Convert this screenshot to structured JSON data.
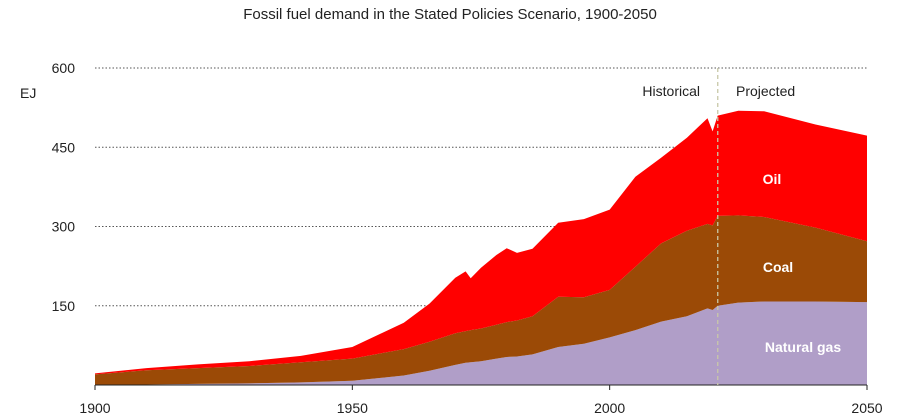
{
  "chart_data": {
    "type": "area",
    "stacked": true,
    "title": "Fossil fuel demand in the Stated Policies Scenario, 1900-2050",
    "ylabel": "EJ",
    "xlabel": "",
    "xlim": [
      1900,
      2050
    ],
    "ylim": [
      0,
      600
    ],
    "x_ticks": [
      1900,
      1950,
      2000,
      2050
    ],
    "y_ticks": [
      150,
      300,
      450,
      600
    ],
    "grid": "horizontal dotted",
    "annotations": {
      "historical": "Historical",
      "projected": "Projected",
      "divider_x": 2021
    },
    "colors": {
      "natural_gas": "#b09ec8",
      "coal": "#9b4a06",
      "oil": "#ff0000"
    },
    "x": [
      1900,
      1910,
      1920,
      1930,
      1940,
      1950,
      1960,
      1965,
      1970,
      1972,
      1973,
      1975,
      1978,
      1980,
      1982,
      1985,
      1990,
      1995,
      2000,
      2005,
      2010,
      2015,
      2019,
      2020,
      2021,
      2025,
      2030,
      2040,
      2050
    ],
    "series": [
      {
        "name": "Natural gas",
        "values": [
          0,
          1,
          2,
          3,
          5,
          8,
          18,
          27,
          38,
          42,
          43,
          45,
          50,
          53,
          54,
          58,
          72,
          78,
          90,
          104,
          120,
          130,
          145,
          142,
          150,
          156,
          158,
          158,
          157
        ]
      },
      {
        "name": "Coal",
        "values": [
          20,
          27,
          30,
          33,
          38,
          42,
          50,
          55,
          60,
          60,
          61,
          62,
          64,
          66,
          68,
          72,
          95,
          88,
          90,
          120,
          148,
          162,
          160,
          160,
          170,
          165,
          160,
          140,
          115
        ]
      },
      {
        "name": "Oil",
        "values": [
          2,
          4,
          7,
          9,
          12,
          22,
          50,
          72,
          105,
          113,
          98,
          115,
          132,
          140,
          128,
          128,
          140,
          148,
          152,
          170,
          162,
          176,
          200,
          178,
          190,
          198,
          200,
          195,
          200
        ]
      }
    ]
  }
}
